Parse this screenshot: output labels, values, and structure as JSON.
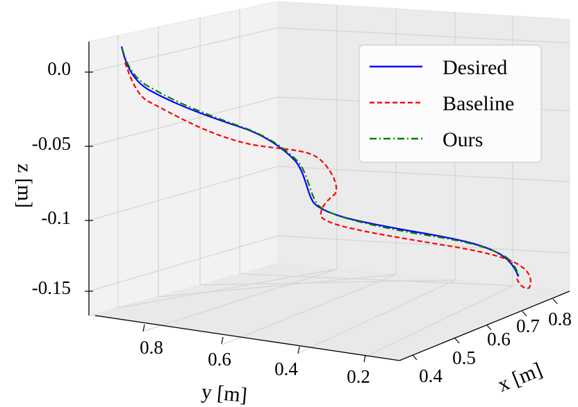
{
  "chart_data": {
    "type": "line3d",
    "title": "",
    "xlabel": "x [m]",
    "ylabel": "y [m]",
    "zlabel": "z [m]",
    "x_ticks": [
      "0.4",
      "0.5",
      "0.6",
      "0.7",
      "0.8"
    ],
    "y_ticks": [
      "0.8",
      "0.6",
      "0.4",
      "0.2"
    ],
    "z_ticks": [
      "0.0",
      "-0.05",
      "-0.1",
      "-0.15"
    ],
    "xlim": [
      0.38,
      0.85
    ],
    "ylim": [
      0.1,
      0.95
    ],
    "zlim": [
      -0.17,
      0.02
    ],
    "legend_position": "top-right",
    "series": [
      {
        "name": "Desired",
        "color": "#0000ff",
        "dash": "solid",
        "x": [
          0.45,
          0.48,
          0.52,
          0.56,
          0.58,
          0.6,
          0.63,
          0.67,
          0.72,
          0.78
        ],
        "y": [
          0.9,
          0.85,
          0.75,
          0.62,
          0.55,
          0.5,
          0.42,
          0.33,
          0.25,
          0.18
        ],
        "z": [
          0.01,
          -0.02,
          -0.04,
          -0.05,
          -0.06,
          -0.09,
          -0.1,
          -0.11,
          -0.12,
          -0.15
        ]
      },
      {
        "name": "Baseline",
        "color": "#ff0000",
        "dash": "dashed",
        "x": [
          0.45,
          0.48,
          0.52,
          0.56,
          0.6,
          0.63,
          0.62,
          0.63,
          0.67,
          0.72,
          0.8
        ],
        "y": [
          0.9,
          0.85,
          0.75,
          0.62,
          0.45,
          0.4,
          0.45,
          0.42,
          0.33,
          0.25,
          0.15
        ],
        "z": [
          0.01,
          -0.02,
          -0.05,
          -0.06,
          -0.06,
          -0.08,
          -0.1,
          -0.11,
          -0.12,
          -0.13,
          -0.16
        ]
      },
      {
        "name": "Ours",
        "color": "#008000",
        "dash": "dashdot",
        "x": [
          0.45,
          0.48,
          0.52,
          0.56,
          0.58,
          0.6,
          0.63,
          0.67,
          0.72,
          0.78
        ],
        "y": [
          0.9,
          0.85,
          0.75,
          0.62,
          0.55,
          0.5,
          0.42,
          0.33,
          0.25,
          0.18
        ],
        "z": [
          0.01,
          -0.02,
          -0.04,
          -0.05,
          -0.06,
          -0.09,
          -0.1,
          -0.11,
          -0.12,
          -0.15
        ]
      }
    ]
  }
}
